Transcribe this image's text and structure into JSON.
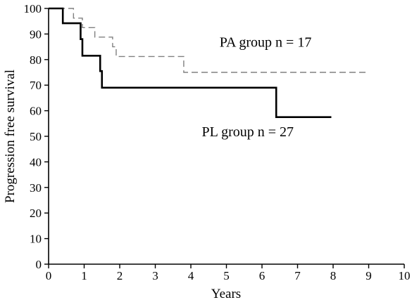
{
  "chart_data": {
    "type": "line",
    "title": "",
    "xlabel": "Years",
    "ylabel": "Progression free survival",
    "xlim": [
      0,
      10
    ],
    "ylim": [
      0,
      100
    ],
    "xticks": [
      0,
      1,
      2,
      3,
      4,
      5,
      6,
      7,
      8,
      9,
      10
    ],
    "yticks": [
      0,
      10,
      20,
      30,
      40,
      50,
      60,
      70,
      80,
      90,
      100
    ],
    "grid": false,
    "legend": "none",
    "series": [
      {
        "name": "PA group n = 17",
        "line_style": "dashed",
        "color": "#808080",
        "step": true,
        "x": [
          0,
          0.7,
          0.95,
          1.3,
          1.8,
          1.9,
          3.8,
          9.0
        ],
        "y": [
          100,
          96.2,
          92.5,
          88.8,
          85.0,
          81.2,
          75.0,
          75.0
        ]
      },
      {
        "name": "PL group n = 27",
        "line_style": "solid",
        "color": "#000000",
        "step": true,
        "x": [
          0,
          0.4,
          0.9,
          0.95,
          1.45,
          1.5,
          6.4,
          7.95
        ],
        "y": [
          100,
          94.2,
          88.0,
          81.5,
          75.5,
          69.0,
          57.5,
          57.5
        ]
      }
    ],
    "annotations": [
      {
        "text": "PA group n = 17",
        "x": 6.1,
        "y": 85
      },
      {
        "text": "PL group n = 27",
        "x": 5.6,
        "y": 50
      }
    ]
  }
}
